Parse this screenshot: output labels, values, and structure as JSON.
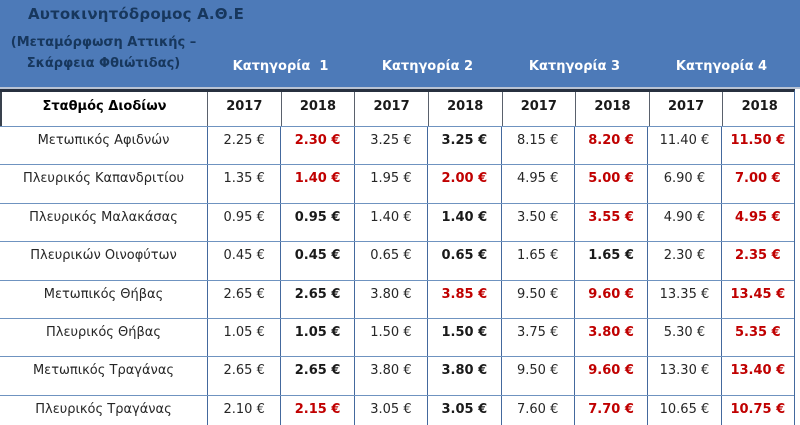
{
  "banner": {
    "title": "Αυτοκινητόδρομος Α.Θ.Ε",
    "subtitle_line1": "(Μεταμόρφωση Αττικής –",
    "subtitle_line2": "Σκάρφεια Φθιώτιδας)",
    "categories": [
      "Κατηγορία  1",
      "Κατηγορία 2",
      "Κατηγορία 3",
      "Κατηγορία 4"
    ],
    "colors": {
      "banner_background": "#4d7ab8",
      "title_text": "#17375d",
      "category_text": "#ffffff"
    }
  },
  "table": {
    "station_header": "Σταθμός Διοδίων",
    "year_headers": [
      "2017",
      "2018",
      "2017",
      "2018",
      "2017",
      "2018",
      "2017",
      "2018"
    ],
    "value_colors": {
      "regular_2017": "#262626",
      "unchanged_2018_bold": "#1a1a1a",
      "increased_2018_red": "#c00000",
      "gridline_blue": "#44699d"
    },
    "rows": [
      {
        "station": "Μετωπικός Αφιδνών",
        "cells": [
          {
            "text": "2.25 €",
            "style": "regular"
          },
          {
            "text": "2.30 €",
            "style": "up"
          },
          {
            "text": "3.25 €",
            "style": "regular"
          },
          {
            "text": "3.25 €",
            "style": "same"
          },
          {
            "text": "8.15 €",
            "style": "regular"
          },
          {
            "text": "8.20 €",
            "style": "up"
          },
          {
            "text": "11.40 €",
            "style": "regular"
          },
          {
            "text": "11.50 €",
            "style": "up"
          }
        ]
      },
      {
        "station": "Πλευρικός Καπανδριτίου",
        "cells": [
          {
            "text": "1.35 €",
            "style": "regular"
          },
          {
            "text": "1.40 €",
            "style": "up"
          },
          {
            "text": "1.95 €",
            "style": "regular"
          },
          {
            "text": "2.00 €",
            "style": "up"
          },
          {
            "text": "4.95 €",
            "style": "regular"
          },
          {
            "text": "5.00 €",
            "style": "up"
          },
          {
            "text": "6.90 €",
            "style": "regular"
          },
          {
            "text": "7.00 €",
            "style": "up"
          }
        ]
      },
      {
        "station": "Πλευρικός Μαλακάσας",
        "cells": [
          {
            "text": "0.95 €",
            "style": "regular"
          },
          {
            "text": "0.95 €",
            "style": "same"
          },
          {
            "text": "1.40 €",
            "style": "regular"
          },
          {
            "text": "1.40 €",
            "style": "same"
          },
          {
            "text": "3.50 €",
            "style": "regular"
          },
          {
            "text": "3.55 €",
            "style": "up"
          },
          {
            "text": "4.90 €",
            "style": "regular"
          },
          {
            "text": "4.95 €",
            "style": "up"
          }
        ]
      },
      {
        "station": "Πλευρικών Οινοφύτων",
        "cells": [
          {
            "text": "0.45 €",
            "style": "regular"
          },
          {
            "text": "0.45 €",
            "style": "same"
          },
          {
            "text": "0.65 €",
            "style": "regular"
          },
          {
            "text": "0.65 €",
            "style": "same"
          },
          {
            "text": "1.65 €",
            "style": "regular"
          },
          {
            "text": "1.65 €",
            "style": "same"
          },
          {
            "text": "2.30 €",
            "style": "regular"
          },
          {
            "text": "2.35 €",
            "style": "up"
          }
        ]
      },
      {
        "station": "Μετωπικός Θήβας",
        "cells": [
          {
            "text": "2.65 €",
            "style": "regular"
          },
          {
            "text": "2.65 €",
            "style": "same"
          },
          {
            "text": "3.80 €",
            "style": "regular"
          },
          {
            "text": "3.85 €",
            "style": "up"
          },
          {
            "text": "9.50 €",
            "style": "regular"
          },
          {
            "text": "9.60 €",
            "style": "up"
          },
          {
            "text": "13.35 €",
            "style": "regular"
          },
          {
            "text": "13.45 €",
            "style": "up"
          }
        ]
      },
      {
        "station": "Πλευρικός Θήβας",
        "cells": [
          {
            "text": "1.05 €",
            "style": "regular"
          },
          {
            "text": "1.05 €",
            "style": "same"
          },
          {
            "text": "1.50 €",
            "style": "regular"
          },
          {
            "text": "1.50 €",
            "style": "same"
          },
          {
            "text": "3.75 €",
            "style": "regular"
          },
          {
            "text": "3.80 €",
            "style": "up"
          },
          {
            "text": "5.30 €",
            "style": "regular"
          },
          {
            "text": "5.35 €",
            "style": "up"
          }
        ]
      },
      {
        "station": "Μετωπικός Τραγάνας",
        "cells": [
          {
            "text": "2.65 €",
            "style": "regular"
          },
          {
            "text": "2.65 €",
            "style": "same"
          },
          {
            "text": "3.80 €",
            "style": "regular"
          },
          {
            "text": "3.80 €",
            "style": "same"
          },
          {
            "text": "9.50 €",
            "style": "regular"
          },
          {
            "text": "9.60 €",
            "style": "up"
          },
          {
            "text": "13.30 €",
            "style": "regular"
          },
          {
            "text": "13.40 €",
            "style": "up"
          }
        ]
      },
      {
        "station": "Πλευρικός Τραγάνας",
        "cells": [
          {
            "text": "2.10 €",
            "style": "regular"
          },
          {
            "text": "2.15 €",
            "style": "up"
          },
          {
            "text": "3.05 €",
            "style": "regular"
          },
          {
            "text": "3.05 €",
            "style": "same"
          },
          {
            "text": "7.60 €",
            "style": "regular"
          },
          {
            "text": "7.70 €",
            "style": "up"
          },
          {
            "text": "10.65 €",
            "style": "regular"
          },
          {
            "text": "10.75 €",
            "style": "up"
          }
        ]
      }
    ]
  }
}
